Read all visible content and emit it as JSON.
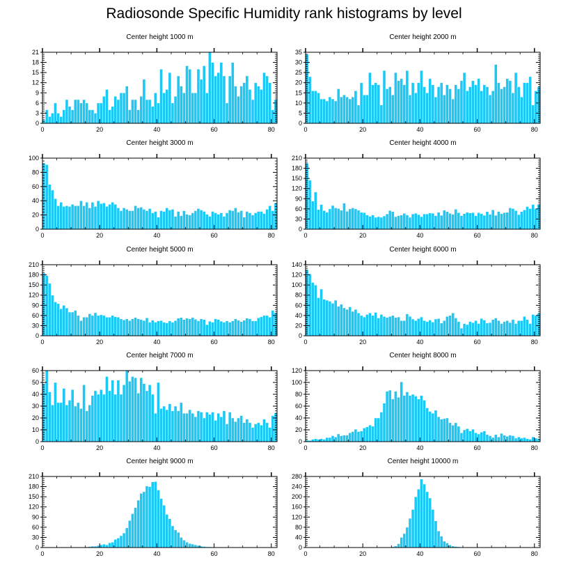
{
  "page_title": "Radiosonde Specific Humidity rank histograms by level",
  "colors": {
    "bar": "#1ec8f5",
    "bar_edge": "#ffffff",
    "axis": "#000000",
    "background": "#ffffff"
  },
  "chart_data": [
    {
      "type": "bar",
      "title": "Center height 1000 m",
      "xlim": [
        0,
        82
      ],
      "ylim": [
        0,
        21
      ],
      "xticks": [
        0,
        20,
        40,
        60,
        80
      ],
      "yticks": [
        0,
        3,
        6,
        9,
        12,
        15,
        18,
        21
      ],
      "values": [
        1,
        4,
        2,
        3,
        6,
        3,
        2,
        4,
        7,
        5,
        4,
        7,
        7,
        6,
        7,
        6,
        4,
        4,
        3,
        6,
        6,
        8,
        10,
        4,
        5,
        8,
        7,
        9,
        9,
        11,
        4,
        7,
        7,
        4,
        8,
        13,
        7,
        7,
        5,
        9,
        6,
        16,
        9,
        10,
        15,
        6,
        8,
        14,
        11,
        9,
        17,
        16,
        9,
        9,
        16,
        13,
        17,
        9,
        21,
        18,
        14,
        15,
        18,
        14,
        6,
        14,
        18,
        11,
        8,
        11,
        12,
        14,
        10,
        7,
        12,
        11,
        10,
        15,
        14,
        12,
        4,
        7
      ]
    },
    {
      "type": "bar",
      "title": "Center height 2000 m",
      "xlim": [
        0,
        82
      ],
      "ylim": [
        0,
        35
      ],
      "xticks": [
        0,
        20,
        40,
        60,
        80
      ],
      "yticks": [
        0,
        5,
        10,
        15,
        20,
        25,
        30,
        35
      ],
      "values": [
        34,
        23,
        16,
        16,
        15,
        12,
        12,
        11,
        13,
        12,
        11,
        17,
        13,
        14,
        13,
        12,
        13,
        16,
        9,
        20,
        14,
        14,
        25,
        19,
        20,
        19,
        9,
        26,
        17,
        18,
        14,
        25,
        21,
        22,
        19,
        26,
        14,
        20,
        15,
        20,
        26,
        18,
        15,
        22,
        19,
        13,
        18,
        20,
        14,
        19,
        17,
        12,
        19,
        17,
        21,
        25,
        16,
        18,
        21,
        19,
        22,
        16,
        19,
        18,
        14,
        16,
        29,
        20,
        17,
        18,
        22,
        21,
        15,
        25,
        18,
        13,
        20,
        20,
        23,
        9,
        16,
        18
      ]
    },
    {
      "type": "bar",
      "title": "Center height 3000 m",
      "xlim": [
        0,
        82
      ],
      "ylim": [
        0,
        100
      ],
      "xticks": [
        0,
        20,
        40,
        60,
        80
      ],
      "yticks": [
        0,
        20,
        40,
        60,
        80,
        100
      ],
      "values": [
        93,
        91,
        63,
        55,
        43,
        33,
        38,
        32,
        33,
        32,
        35,
        33,
        33,
        40,
        33,
        38,
        30,
        38,
        32,
        40,
        36,
        37,
        32,
        35,
        38,
        35,
        30,
        26,
        30,
        28,
        26,
        26,
        33,
        30,
        31,
        28,
        26,
        29,
        23,
        25,
        17,
        26,
        25,
        30,
        27,
        28,
        18,
        25,
        19,
        26,
        21,
        20,
        23,
        26,
        29,
        27,
        25,
        21,
        18,
        25,
        23,
        21,
        23,
        18,
        23,
        27,
        26,
        30,
        24,
        26,
        17,
        25,
        23,
        20,
        23,
        25,
        25,
        22,
        28,
        33,
        26,
        37
      ]
    },
    {
      "type": "bar",
      "title": "Center height 4000 m",
      "xlim": [
        0,
        82
      ],
      "ylim": [
        0,
        210
      ],
      "xticks": [
        0,
        20,
        40,
        60,
        80
      ],
      "yticks": [
        0,
        30,
        60,
        90,
        120,
        150,
        180,
        210
      ],
      "values": [
        195,
        145,
        83,
        110,
        58,
        73,
        55,
        50,
        60,
        70,
        63,
        61,
        56,
        77,
        53,
        60,
        63,
        60,
        56,
        50,
        49,
        42,
        38,
        42,
        35,
        37,
        35,
        39,
        45,
        55,
        52,
        37,
        40,
        42,
        47,
        42,
        35,
        45,
        47,
        43,
        37,
        45,
        45,
        48,
        47,
        40,
        50,
        41,
        56,
        52,
        47,
        44,
        59,
        49,
        40,
        46,
        50,
        48,
        49,
        40,
        49,
        46,
        41,
        52,
        44,
        57,
        41,
        52,
        46,
        49,
        50,
        63,
        61,
        55,
        43,
        52,
        57,
        67,
        61,
        73,
        61,
        73
      ]
    },
    {
      "type": "bar",
      "title": "Center height 5000 m",
      "xlim": [
        0,
        82
      ],
      "ylim": [
        0,
        210
      ],
      "xticks": [
        0,
        20,
        40,
        60,
        80
      ],
      "yticks": [
        0,
        30,
        60,
        90,
        120,
        150,
        180,
        210
      ],
      "values": [
        185,
        178,
        155,
        120,
        100,
        95,
        80,
        90,
        82,
        70,
        70,
        75,
        60,
        45,
        55,
        55,
        65,
        60,
        68,
        60,
        62,
        60,
        55,
        55,
        60,
        56,
        55,
        50,
        47,
        50,
        45,
        50,
        54,
        50,
        48,
        45,
        53,
        40,
        46,
        40,
        44,
        45,
        40,
        38,
        44,
        40,
        45,
        52,
        54,
        48,
        52,
        50,
        54,
        49,
        44,
        50,
        48,
        33,
        43,
        40,
        50,
        48,
        43,
        40,
        44,
        40,
        44,
        50,
        46,
        42,
        46,
        52,
        50,
        44,
        44,
        53,
        56,
        60,
        60,
        55,
        75,
        68
      ]
    },
    {
      "type": "bar",
      "title": "Center height 6000 m",
      "xlim": [
        0,
        82
      ],
      "ylim": [
        0,
        140
      ],
      "xticks": [
        0,
        20,
        40,
        60,
        80
      ],
      "yticks": [
        0,
        20,
        40,
        60,
        80,
        100,
        120,
        140
      ],
      "values": [
        130,
        122,
        105,
        100,
        75,
        92,
        72,
        70,
        68,
        64,
        70,
        58,
        62,
        55,
        52,
        57,
        48,
        52,
        45,
        40,
        37,
        42,
        45,
        40,
        46,
        35,
        42,
        38,
        36,
        38,
        40,
        36,
        37,
        30,
        30,
        43,
        38,
        33,
        30,
        34,
        37,
        30,
        28,
        31,
        27,
        33,
        34,
        25,
        30,
        38,
        40,
        45,
        35,
        28,
        15,
        24,
        22,
        28,
        26,
        30,
        24,
        34,
        31,
        25,
        26,
        32,
        35,
        30,
        24,
        28,
        30,
        26,
        32,
        24,
        30,
        30,
        38,
        32,
        24,
        42,
        40,
        44
      ]
    },
    {
      "type": "bar",
      "title": "Center height 7000 m",
      "xlim": [
        0,
        82
      ],
      "ylim": [
        0,
        60
      ],
      "xticks": [
        0,
        20,
        40,
        60,
        80
      ],
      "yticks": [
        0,
        10,
        20,
        30,
        40,
        50,
        60
      ],
      "values": [
        49,
        60,
        42,
        31,
        50,
        33,
        33,
        45,
        31,
        35,
        44,
        30,
        33,
        28,
        48,
        26,
        31,
        39,
        43,
        40,
        44,
        40,
        55,
        43,
        52,
        40,
        52,
        40,
        48,
        60,
        51,
        55,
        54,
        41,
        54,
        49,
        43,
        48,
        40,
        24,
        50,
        28,
        30,
        27,
        32,
        26,
        30,
        26,
        33,
        24,
        24,
        27,
        24,
        21,
        26,
        25,
        20,
        25,
        23,
        25,
        18,
        24,
        21,
        26,
        15,
        25,
        20,
        17,
        20,
        22,
        16,
        19,
        16,
        12,
        15,
        16,
        14,
        19,
        16,
        12,
        22,
        24
      ]
    },
    {
      "type": "bar",
      "title": "Center height 8000 m",
      "xlim": [
        0,
        82
      ],
      "ylim": [
        0,
        120
      ],
      "xticks": [
        0,
        20,
        40,
        60,
        80
      ],
      "yticks": [
        0,
        20,
        40,
        60,
        80,
        100,
        120
      ],
      "values": [
        3,
        2,
        4,
        5,
        4,
        5,
        4,
        7,
        7,
        10,
        8,
        13,
        10,
        11,
        11,
        15,
        17,
        21,
        17,
        18,
        23,
        25,
        28,
        26,
        40,
        40,
        50,
        65,
        85,
        87,
        72,
        85,
        75,
        101,
        78,
        84,
        78,
        80,
        77,
        72,
        78,
        70,
        57,
        51,
        48,
        53,
        42,
        38,
        39,
        40,
        32,
        28,
        32,
        26,
        15,
        20,
        22,
        18,
        21,
        15,
        13,
        16,
        18,
        12,
        10,
        7,
        12,
        8,
        14,
        11,
        9,
        11,
        10,
        6,
        8,
        6,
        7,
        5,
        4,
        8,
        6,
        5
      ]
    },
    {
      "type": "bar",
      "title": "Center height 9000 m",
      "xlim": [
        0,
        82
      ],
      "ylim": [
        0,
        210
      ],
      "xticks": [
        0,
        20,
        40,
        60,
        80
      ],
      "yticks": [
        0,
        30,
        60,
        90,
        120,
        150,
        180,
        210
      ],
      "values": [
        0,
        0,
        0,
        0,
        0,
        0,
        0,
        0,
        0,
        0,
        1,
        1,
        1,
        1,
        1,
        2,
        3,
        4,
        4,
        6,
        8,
        10,
        8,
        14,
        16,
        24,
        28,
        35,
        43,
        58,
        80,
        100,
        118,
        140,
        160,
        165,
        182,
        180,
        194,
        195,
        170,
        145,
        125,
        98,
        85,
        64,
        52,
        45,
        30,
        22,
        16,
        12,
        10,
        8,
        6,
        4,
        3,
        2,
        2,
        1,
        1,
        1,
        0,
        0,
        0,
        0,
        0,
        0,
        0,
        0,
        0,
        0,
        0,
        0,
        0,
        0,
        0,
        0,
        0,
        0,
        0,
        0
      ]
    },
    {
      "type": "bar",
      "title": "Center height 10000 m",
      "xlim": [
        0,
        82
      ],
      "ylim": [
        0,
        280
      ],
      "xticks": [
        0,
        20,
        40,
        60,
        80
      ],
      "yticks": [
        0,
        40,
        80,
        120,
        160,
        200,
        240,
        280
      ],
      "values": [
        0,
        0,
        0,
        0,
        0,
        0,
        0,
        0,
        0,
        0,
        0,
        0,
        0,
        0,
        0,
        0,
        0,
        0,
        0,
        0,
        0,
        0,
        0,
        0,
        0,
        0,
        0,
        0,
        1,
        1,
        3,
        6,
        15,
        40,
        55,
        80,
        115,
        150,
        200,
        230,
        270,
        250,
        220,
        195,
        150,
        105,
        65,
        45,
        25,
        18,
        10,
        6,
        4,
        3,
        2,
        1,
        1,
        0,
        0,
        0,
        0,
        0,
        0,
        0,
        0,
        0,
        0,
        0,
        0,
        0,
        0,
        0,
        0,
        0,
        0,
        0,
        0,
        0,
        0,
        0,
        0,
        0
      ]
    }
  ]
}
